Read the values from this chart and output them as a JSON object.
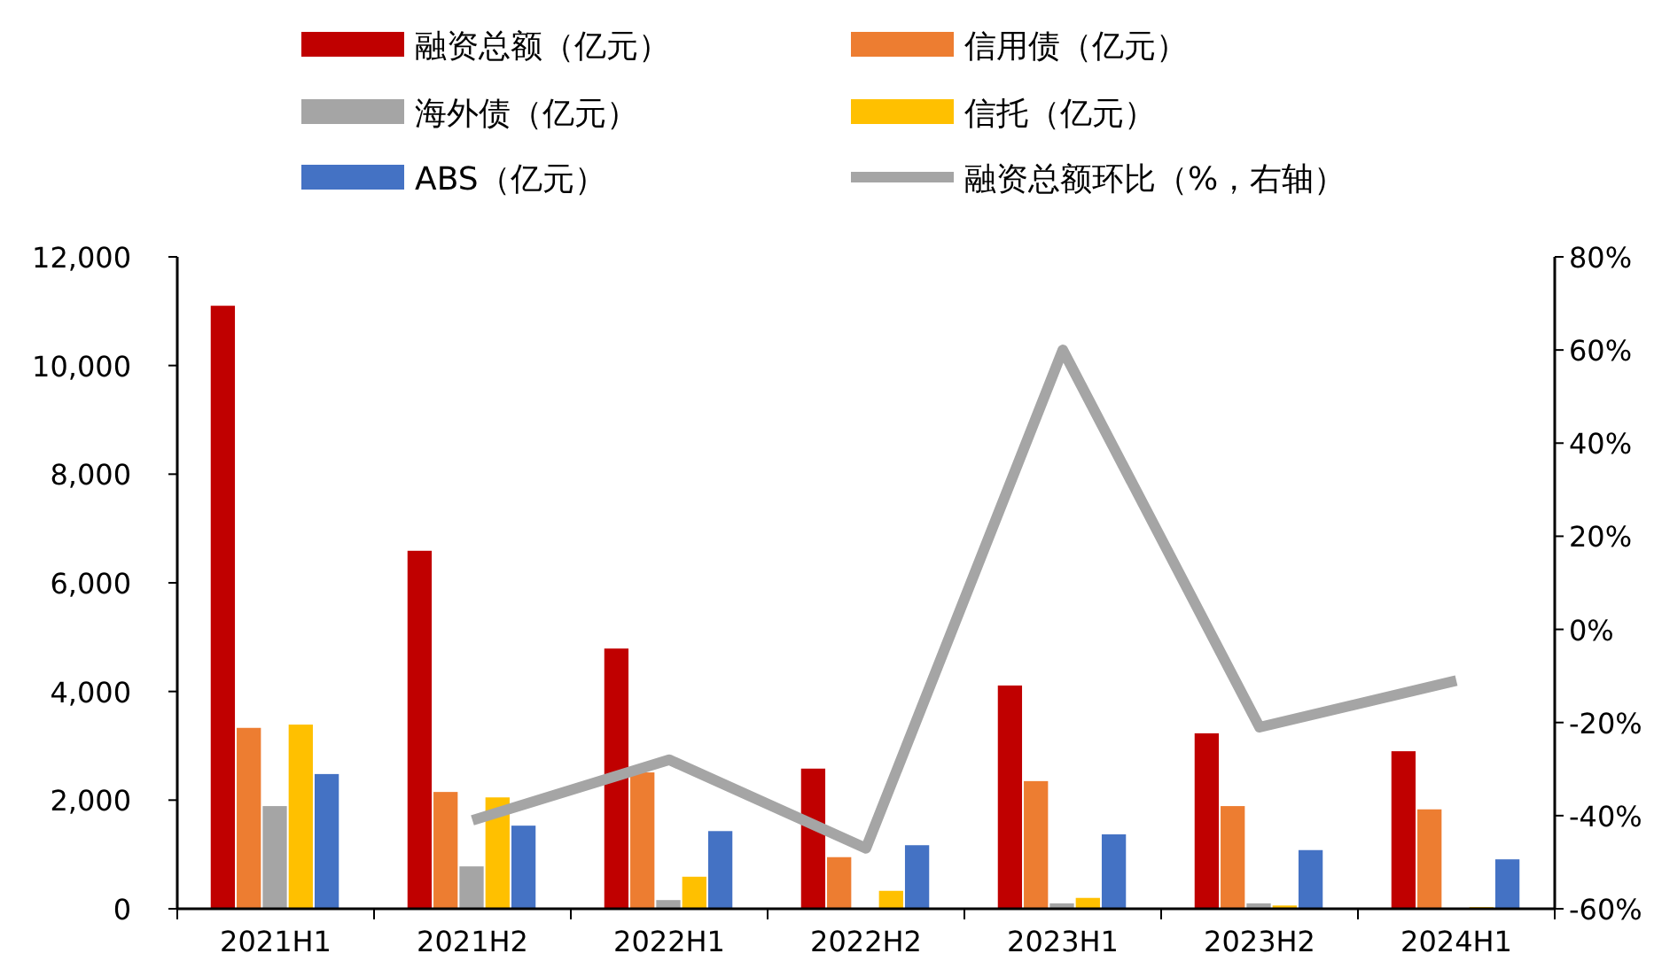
{
  "chart_data": {
    "type": "bar",
    "categories": [
      "2021H1",
      "2021H2",
      "2022H1",
      "2022H2",
      "2023H1",
      "2023H2",
      "2024H1"
    ],
    "series": [
      {
        "name": "融资总额（亿元）",
        "color": "#c00000",
        "values": [
          11100,
          6590,
          4790,
          2580,
          4110,
          3230,
          2900
        ]
      },
      {
        "name": "信用债（亿元）",
        "color": "#ed7d31",
        "values": [
          3330,
          2150,
          2510,
          950,
          2350,
          1890,
          1830
        ]
      },
      {
        "name": "海外债（亿元）",
        "color": "#a5a5a5",
        "values": [
          1890,
          780,
          160,
          0,
          100,
          100,
          0
        ]
      },
      {
        "name": "信托（亿元）",
        "color": "#ffc000",
        "values": [
          3390,
          2050,
          590,
          330,
          200,
          60,
          30
        ]
      },
      {
        "name": "ABS（亿元）",
        "color": "#4472c4",
        "values": [
          2480,
          1530,
          1430,
          1170,
          1370,
          1080,
          910
        ]
      },
      {
        "name": "融资总额环比（%，右轴）",
        "color": "#a5a5a5",
        "type": "line",
        "axis": "y2",
        "values": [
          null,
          -41,
          -28,
          -47,
          60,
          -21,
          -11
        ]
      }
    ],
    "ylim": [
      0,
      12000
    ],
    "yticks": [
      0,
      {
        "value": 2000,
        "label": "2,000"
      },
      {
        "value": 4000,
        "label": "4,000"
      },
      {
        "value": 6000,
        "label": "6,000"
      },
      {
        "value": 8000,
        "label": "8,000"
      },
      {
        "value": 10000,
        "label": "10,000"
      },
      {
        "value": 12000,
        "label": "12,000"
      }
    ],
    "y2lim": [
      -60,
      80
    ],
    "y2ticks": [
      {
        "value": -60,
        "label": "-60%"
      },
      {
        "value": -40,
        "label": "-40%"
      },
      {
        "value": -20,
        "label": "-20%"
      },
      {
        "value": 0,
        "label": "0%"
      },
      {
        "value": 20,
        "label": "20%"
      },
      {
        "value": 40,
        "label": "40%"
      },
      {
        "value": 60,
        "label": "60%"
      },
      {
        "value": 80,
        "label": "80%"
      }
    ],
    "legend": "top",
    "grid": false
  }
}
